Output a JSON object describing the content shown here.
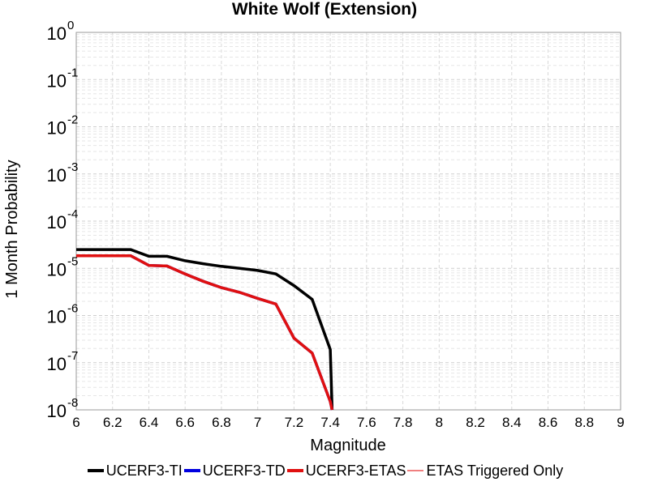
{
  "chart_data": {
    "type": "line",
    "title": "White Wolf (Extension)",
    "xlabel": "Magnitude",
    "ylabel": "1 Month Probability",
    "xlim": [
      6,
      9
    ],
    "ylim": [
      1e-08,
      1
    ],
    "yscale": "log",
    "grid": true,
    "legend_position": "bottom",
    "x_ticks": [
      "6",
      "6.2",
      "6.4",
      "6.6",
      "6.8",
      "7",
      "7.2",
      "7.4",
      "7.6",
      "7.8",
      "8",
      "8.2",
      "8.4",
      "8.6",
      "8.8",
      "9"
    ],
    "y_ticks": [
      {
        "base": "10",
        "exp": "0"
      },
      {
        "base": "10",
        "exp": "-1"
      },
      {
        "base": "10",
        "exp": "-2"
      },
      {
        "base": "10",
        "exp": "-3"
      },
      {
        "base": "10",
        "exp": "-4"
      },
      {
        "base": "10",
        "exp": "-5"
      },
      {
        "base": "10",
        "exp": "-6"
      },
      {
        "base": "10",
        "exp": "-7"
      },
      {
        "base": "10",
        "exp": "-8"
      }
    ],
    "series": [
      {
        "name": "UCERF3-TI",
        "color": "#000000",
        "x": [
          6.0,
          6.1,
          6.2,
          6.3,
          6.4,
          6.5,
          6.6,
          6.7,
          6.8,
          6.9,
          7.0,
          7.1,
          7.2,
          7.3,
          7.4,
          7.41
        ],
        "y": [
          2.5e-05,
          2.5e-05,
          2.5e-05,
          2.5e-05,
          1.8e-05,
          1.8e-05,
          1.45e-05,
          1.25e-05,
          1.1e-05,
          1e-05,
          9e-06,
          7.6e-06,
          4.3e-06,
          2.2e-06,
          1.9e-07,
          1e-08
        ]
      },
      {
        "name": "UCERF3-TD",
        "color": "#0000e0",
        "x": [
          6.0,
          6.1,
          6.2,
          6.3,
          6.4,
          6.5,
          6.6,
          6.7,
          6.8,
          6.9,
          7.0,
          7.1,
          7.2,
          7.3,
          7.4,
          7.41
        ],
        "y": [
          1.85e-05,
          1.85e-05,
          1.85e-05,
          1.85e-05,
          1.15e-05,
          1.12e-05,
          7.6e-06,
          5.3e-06,
          3.9e-06,
          3.1e-06,
          2.3e-06,
          1.75e-06,
          3.3e-07,
          1.6e-07,
          1.5e-08,
          1e-08
        ]
      },
      {
        "name": "UCERF3-ETAS",
        "color": "#e01010",
        "x": [
          6.0,
          6.1,
          6.2,
          6.3,
          6.4,
          6.5,
          6.6,
          6.7,
          6.8,
          6.9,
          7.0,
          7.1,
          7.2,
          7.3,
          7.4,
          7.41
        ],
        "y": [
          1.85e-05,
          1.85e-05,
          1.85e-05,
          1.85e-05,
          1.15e-05,
          1.12e-05,
          7.6e-06,
          5.3e-06,
          3.9e-06,
          3.1e-06,
          2.3e-06,
          1.75e-06,
          3.3e-07,
          1.6e-07,
          1.5e-08,
          1e-08
        ]
      },
      {
        "name": "ETAS Triggered Only",
        "color": "#f08080",
        "x": [],
        "y": []
      }
    ]
  }
}
